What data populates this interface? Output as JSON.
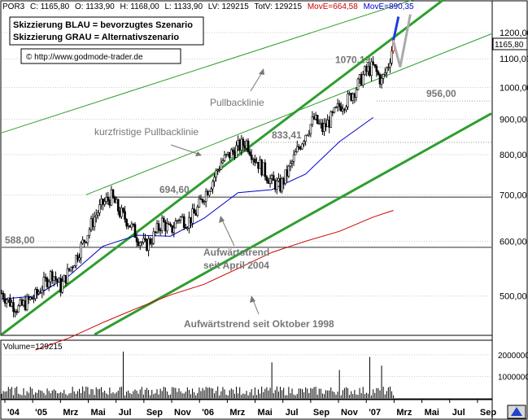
{
  "chart_data": {
    "type": "candlestick",
    "header": {
      "symbol": "POR3",
      "close": "C: 1165,80",
      "open": "O: 1133,90",
      "high": "H: 1168,00",
      "low": "L: 1133,90",
      "lv": "LV: 129215",
      "totv": "TotV: 129215",
      "move1": "MovE=664,58",
      "move2": "MovE=890,35"
    },
    "legend": {
      "line1": "Skizzierung BLAU = bevorzugtes Szenario",
      "line2": "Skizzierung GRAU = Alternativszenario",
      "copyright": "© http://www.godmode-trader.de"
    },
    "price_label": "1165,80",
    "y_axis": {
      "scale": "log",
      "range": [
        440,
        1330
      ],
      "ticks": [
        {
          "value": 500,
          "label": "500,00"
        },
        {
          "value": 600,
          "label": "600,00"
        },
        {
          "value": 700,
          "label": "700,00"
        },
        {
          "value": 800,
          "label": "800,00"
        },
        {
          "value": 900,
          "label": "900,00"
        },
        {
          "value": 1000,
          "label": "1000,00"
        },
        {
          "value": 1100,
          "label": "1100,00"
        },
        {
          "value": 1200,
          "label": "1200,00"
        }
      ]
    },
    "x_axis": {
      "labels": [
        "'04",
        "'05",
        "Mrz",
        "Mai",
        "Jul",
        "Sep",
        "Nov",
        "'06",
        "Mrz",
        "Mai",
        "Jul",
        "Sep",
        "Nov",
        "'07",
        "Mrz",
        "Mai",
        "Jul",
        "Sep"
      ]
    },
    "levels": [
      {
        "value": 588,
        "label": "588,00"
      },
      {
        "value": 694.6,
        "label": "694,60"
      },
      {
        "value": 833.41,
        "label": "833,41"
      },
      {
        "value": 956,
        "label": "956,00"
      },
      {
        "value": 1070.19,
        "label": "1070,19"
      }
    ],
    "annotations": {
      "pullback": "Pullbacklinie",
      "short_pullback": "kurzfristige Pullbacklinie",
      "uptrend_2004_line1": "Aufwärtstrend",
      "uptrend_2004_line2": "seit April 2004",
      "uptrend_1998": "Aufwärtstrend seit Oktober 1998"
    },
    "close_path": [
      [
        0,
        505
      ],
      [
        5,
        490
      ],
      [
        10,
        480
      ],
      [
        15,
        490
      ],
      [
        20,
        500
      ],
      [
        25,
        520
      ],
      [
        30,
        540
      ],
      [
        35,
        515
      ],
      [
        40,
        545
      ],
      [
        45,
        575
      ],
      [
        50,
        610
      ],
      [
        55,
        650
      ],
      [
        60,
        680
      ],
      [
        65,
        694.6
      ],
      [
        70,
        660
      ],
      [
        75,
        640
      ],
      [
        80,
        610
      ],
      [
        85,
        590
      ],
      [
        90,
        610
      ],
      [
        95,
        640
      ],
      [
        100,
        620
      ],
      [
        105,
        650
      ],
      [
        110,
        640
      ],
      [
        115,
        660
      ],
      [
        120,
        700
      ],
      [
        125,
        735
      ],
      [
        130,
        780
      ],
      [
        135,
        800
      ],
      [
        140,
        820
      ],
      [
        145,
        833.41
      ],
      [
        150,
        790
      ],
      [
        155,
        760
      ],
      [
        160,
        730
      ],
      [
        165,
        720
      ],
      [
        170,
        760
      ],
      [
        175,
        810
      ],
      [
        180,
        860
      ],
      [
        185,
        900
      ],
      [
        190,
        870
      ],
      [
        195,
        900
      ],
      [
        200,
        940
      ],
      [
        205,
        960
      ],
      [
        210,
        1000
      ],
      [
        215,
        1050
      ],
      [
        220,
        1070.19
      ],
      [
        225,
        1020
      ],
      [
        229,
        1080
      ],
      [
        231,
        1133.9
      ],
      [
        232,
        1165.8
      ]
    ],
    "ma_blue": [
      [
        0,
        495
      ],
      [
        20,
        500
      ],
      [
        40,
        535
      ],
      [
        60,
        590
      ],
      [
        80,
        612
      ],
      [
        100,
        610
      ],
      [
        120,
        648
      ],
      [
        140,
        705
      ],
      [
        160,
        712
      ],
      [
        180,
        750
      ],
      [
        200,
        835
      ],
      [
        220,
        905
      ]
    ],
    "ma_red": [
      [
        20,
        418
      ],
      [
        40,
        435
      ],
      [
        60,
        458
      ],
      [
        80,
        480
      ],
      [
        100,
        502
      ],
      [
        120,
        520
      ],
      [
        140,
        548
      ],
      [
        160,
        578
      ],
      [
        180,
        600
      ],
      [
        200,
        620
      ],
      [
        220,
        650
      ],
      [
        232,
        664.58
      ]
    ],
    "trendlines": {
      "uptrend_2004": [
        [
          0,
          440
        ],
        [
          232,
          1180
        ]
      ],
      "uptrend_1998": [
        [
          55,
          440
        ],
        [
          232,
          765
        ]
      ],
      "pullback": [
        [
          0,
          860
        ],
        [
          232,
          1310
        ]
      ],
      "short_pullback": [
        [
          50,
          700
        ],
        [
          232,
          1050
        ]
      ]
    },
    "scenarios": {
      "blue": [
        [
          232,
          1170
        ],
        [
          235,
          1265
        ]
      ],
      "gray": [
        [
          232,
          1165
        ],
        [
          236,
          1070
        ],
        [
          242,
          1275
        ]
      ]
    },
    "volume": {
      "label": "Volume=129215",
      "ticks": [
        {
          "value": 1000000,
          "label": "1000000"
        },
        {
          "value": 2000000,
          "label": "2000000"
        }
      ],
      "max": 2600000,
      "spikes": [
        [
          72,
          2150000
        ],
        [
          160,
          1650000
        ],
        [
          200,
          1300000
        ],
        [
          218,
          1900000
        ],
        [
          225,
          1500000
        ]
      ]
    }
  }
}
